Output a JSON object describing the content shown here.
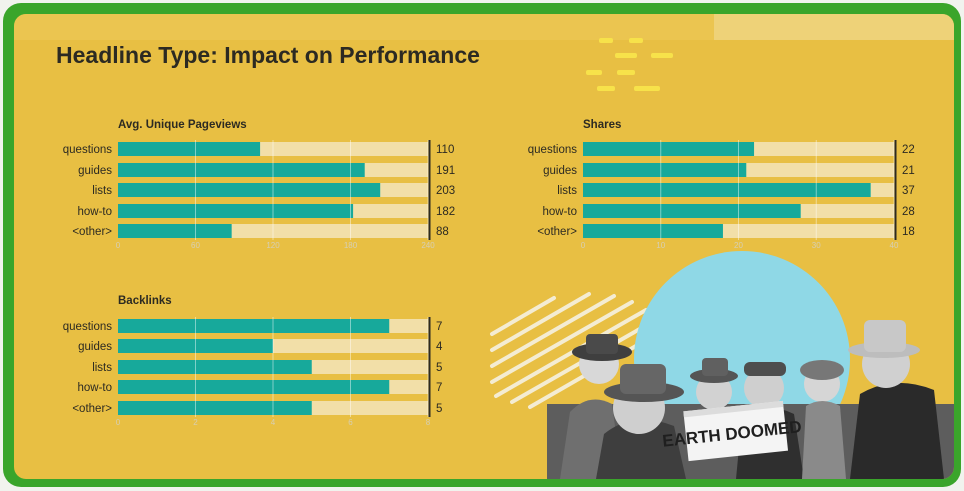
{
  "page": {
    "title": "Headline Type: Impact on Performance"
  },
  "colors": {
    "background": "#e8bf43",
    "bar": "#17a99b",
    "track": "#f2dfa8",
    "text": "#2c2a22",
    "frame": "#3aa52b"
  },
  "chart_data": [
    {
      "type": "bar",
      "orientation": "horizontal",
      "title": "Avg. Unique Pageviews",
      "categories": [
        "questions",
        "guides",
        "lists",
        "how-to",
        "<other>"
      ],
      "values": [
        110,
        191,
        203,
        182,
        88
      ],
      "value_labels": [
        "110",
        "191",
        "203",
        "182",
        "88"
      ],
      "xlim": [
        0,
        240
      ],
      "ticks": [
        0,
        60,
        120,
        180,
        240
      ],
      "tick_labels": [
        "0",
        "60",
        "120",
        "180",
        "240"
      ],
      "grid": true
    },
    {
      "type": "bar",
      "orientation": "horizontal",
      "title": "Shares",
      "categories": [
        "questions",
        "guides",
        "lists",
        "how-to",
        "<other>"
      ],
      "values": [
        22,
        21,
        37,
        28,
        18
      ],
      "value_labels": [
        "22",
        "21",
        "37",
        "28",
        "18"
      ],
      "xlim": [
        0,
        40
      ],
      "ticks": [
        0,
        10,
        20,
        30,
        40
      ],
      "tick_labels": [
        "0",
        "10",
        "20",
        "30",
        "40"
      ],
      "grid": true
    },
    {
      "type": "bar",
      "orientation": "horizontal",
      "title": "Backlinks",
      "categories": [
        "questions",
        "guides",
        "lists",
        "how-to",
        "<other>"
      ],
      "values": [
        7,
        4,
        5,
        7,
        5
      ],
      "value_labels": [
        "7",
        "4",
        "5",
        "7",
        "5"
      ],
      "xlim": [
        0,
        8
      ],
      "ticks": [
        0,
        2,
        4,
        6,
        8
      ],
      "tick_labels": [
        "0",
        "2",
        "4",
        "6",
        "8"
      ],
      "grid": true
    }
  ],
  "photo": {
    "icon": "vintage-newspaper-crowd-photo",
    "newspaper_headline": "EARTH DOOMED"
  }
}
